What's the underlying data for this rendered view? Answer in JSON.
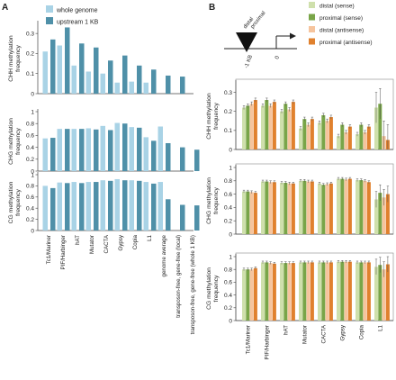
{
  "panel_labels": {
    "a": "A",
    "b": "B"
  },
  "legend_a": [
    {
      "label": "whole genome",
      "color": "#a9d3e6"
    },
    {
      "label": "upstream 1 KB",
      "color": "#4f90a8"
    }
  ],
  "legend_b": [
    {
      "label": "distal (sense)",
      "color": "#cfe0ac"
    },
    {
      "label": "proximal (sense)",
      "color": "#79a548"
    },
    {
      "label": "distal (antisense)",
      "color": "#f6c49d"
    },
    {
      "label": "proximal (antisense)",
      "color": "#e0812e"
    }
  ],
  "schematic": {
    "distal": "distal",
    "proximal": "proximal",
    "minus1kb": "-1 KB",
    "zero": "0"
  },
  "chart_data": [
    {
      "type": "bar",
      "panel": "A",
      "ylabel": [
        "CHH methylation",
        "frequency"
      ],
      "ylim": [
        0,
        0.35
      ],
      "yticks": [
        0,
        0.1,
        0.2,
        0.3
      ],
      "yticklabels": [
        "0",
        "0.1",
        "0.2",
        "0.3"
      ],
      "categories": [
        "Tc1/Mariner",
        "PIF/Harbinger",
        "hAT",
        "Mutator",
        "CACTA",
        "Gypsy",
        "Copia",
        "L1",
        "genome average",
        "transposon-free, gene-free (local)",
        "transposon-free, gene-free (whole 1 KB)"
      ],
      "series": [
        {
          "name": "whole genome",
          "values": [
            0.21,
            0.24,
            0.14,
            0.11,
            0.1,
            0.055,
            0.06,
            0.055,
            null,
            null,
            null
          ]
        },
        {
          "name": "upstream 1 KB",
          "values": [
            0.27,
            0.33,
            0.25,
            0.23,
            0.165,
            0.19,
            0.14,
            0.12,
            0.09,
            0.085,
            null
          ]
        }
      ]
    },
    {
      "type": "bar",
      "panel": "A",
      "ylabel": [
        "CHG methylation",
        "frequency"
      ],
      "ylim": [
        0,
        1
      ],
      "yticks": [
        0,
        0.2,
        0.4,
        0.6,
        0.8,
        1
      ],
      "yticklabels": [
        "0",
        "0.2",
        "0.4",
        "0.6",
        "0.8",
        "1"
      ],
      "categories": [
        "Tc1/Mariner",
        "PIF/Harbinger",
        "hAT",
        "Mutator",
        "CACTA",
        "Gypsy",
        "Copia",
        "L1",
        "genome average",
        "transposon-free, gene-free (local)",
        "transposon-free, gene-free (whole 1 KB)"
      ],
      "series": [
        {
          "name": "whole genome",
          "values": [
            0.55,
            0.71,
            0.71,
            0.72,
            0.76,
            0.81,
            0.74,
            0.57,
            0.75,
            null,
            null
          ]
        },
        {
          "name": "upstream 1 KB",
          "values": [
            0.56,
            0.71,
            0.71,
            0.7,
            0.69,
            0.8,
            0.73,
            0.51,
            0.47,
            0.4,
            0.36
          ]
        }
      ]
    },
    {
      "type": "bar",
      "panel": "A",
      "ylabel": [
        "CG methylation",
        "frequency"
      ],
      "ylim": [
        0,
        1
      ],
      "yticks": [
        0,
        0.2,
        0.4,
        0.6,
        0.8,
        1
      ],
      "yticklabels": [
        "0",
        "0.2",
        "0.4",
        "0.6",
        "0.8",
        "1"
      ],
      "categories": [
        "Tc1/Mariner",
        "PIF/Harbinger",
        "hAT",
        "Mutator",
        "CACTA",
        "Gypsy",
        "Copia",
        "L1",
        "genome average",
        "transposon-free, gene-free (local)",
        "transposon-free, gene-free (whole 1 KB)"
      ],
      "series": [
        {
          "name": "whole genome",
          "values": [
            0.8,
            0.86,
            0.87,
            0.87,
            0.9,
            0.92,
            0.9,
            0.87,
            0.87,
            null,
            null
          ]
        },
        {
          "name": "upstream 1 KB",
          "values": [
            0.76,
            0.85,
            0.85,
            0.87,
            0.89,
            0.9,
            0.89,
            0.84,
            0.56,
            0.46,
            0.45
          ]
        }
      ]
    },
    {
      "type": "bar",
      "panel": "B",
      "ylabel": [
        "CHH methylation",
        "frequency"
      ],
      "ylim": [
        0,
        0.35
      ],
      "yticks": [
        0,
        0.1,
        0.2,
        0.3
      ],
      "yticklabels": [
        "0",
        "0.1",
        "0.2",
        "0.3"
      ],
      "categories": [
        "Tc1/Mariner",
        "PIF/Harbinger",
        "hAT",
        "Mutator",
        "CACTA",
        "Gypsy",
        "Copia",
        "L1"
      ],
      "series": [
        {
          "name": "distal (sense)",
          "values": [
            0.22,
            0.23,
            0.2,
            0.11,
            0.14,
            0.07,
            0.08,
            0.22
          ]
        },
        {
          "name": "proximal (sense)",
          "values": [
            0.23,
            0.26,
            0.24,
            0.16,
            0.18,
            0.13,
            0.13,
            0.24
          ]
        },
        {
          "name": "distal (antisense)",
          "values": [
            0.24,
            0.23,
            0.21,
            0.13,
            0.15,
            0.09,
            0.09,
            0.07
          ]
        },
        {
          "name": "proximal (antisense)",
          "values": [
            0.26,
            0.25,
            0.25,
            0.16,
            0.17,
            0.12,
            0.12,
            0.05
          ]
        }
      ]
    },
    {
      "type": "bar",
      "panel": "B",
      "ylabel": [
        "CHG methylation",
        "frequency"
      ],
      "ylim": [
        0,
        1
      ],
      "yticks": [
        0,
        0.2,
        0.4,
        0.6,
        0.8,
        1
      ],
      "yticklabels": [
        "0",
        "0.2",
        "0.4",
        "0.6",
        "0.8",
        "1"
      ],
      "categories": [
        "Tc1/Mariner",
        "PIF/Harbinger",
        "hAT",
        "Mutator",
        "CACTA",
        "Gypsy",
        "Copia",
        "L1"
      ],
      "series": [
        {
          "name": "distal (sense)",
          "values": [
            0.64,
            0.79,
            0.77,
            0.8,
            0.76,
            0.83,
            0.81,
            0.52
          ]
        },
        {
          "name": "proximal (sense)",
          "values": [
            0.64,
            0.79,
            0.77,
            0.8,
            0.74,
            0.83,
            0.81,
            0.62
          ]
        },
        {
          "name": "distal (antisense)",
          "values": [
            0.63,
            0.78,
            0.76,
            0.79,
            0.75,
            0.82,
            0.8,
            0.55
          ]
        },
        {
          "name": "proximal (antisense)",
          "values": [
            0.62,
            0.78,
            0.76,
            0.79,
            0.76,
            0.83,
            0.78,
            0.6
          ]
        }
      ]
    },
    {
      "type": "bar",
      "panel": "B",
      "ylabel": [
        "CG methylation",
        "frequency"
      ],
      "ylim": [
        0,
        1
      ],
      "yticks": [
        0,
        0.2,
        0.4,
        0.6,
        0.8,
        1
      ],
      "yticklabels": [
        "0",
        "0.2",
        "0.4",
        "0.6",
        "0.8",
        "1"
      ],
      "categories": [
        "Tc1/Mariner",
        "PIF/Harbinger",
        "hAT",
        "Mutator",
        "CACTA",
        "Gypsy",
        "Copia",
        "L1"
      ],
      "series": [
        {
          "name": "distal (sense)",
          "values": [
            0.8,
            0.91,
            0.9,
            0.91,
            0.91,
            0.92,
            0.91,
            0.84
          ]
        },
        {
          "name": "proximal (sense)",
          "values": [
            0.8,
            0.91,
            0.9,
            0.91,
            0.91,
            0.92,
            0.91,
            0.87
          ]
        },
        {
          "name": "distal (antisense)",
          "values": [
            0.8,
            0.9,
            0.9,
            0.91,
            0.91,
            0.92,
            0.91,
            0.8
          ]
        },
        {
          "name": "proximal (antisense)",
          "values": [
            0.82,
            0.89,
            0.9,
            0.91,
            0.91,
            0.92,
            0.91,
            0.88
          ]
        }
      ]
    }
  ]
}
